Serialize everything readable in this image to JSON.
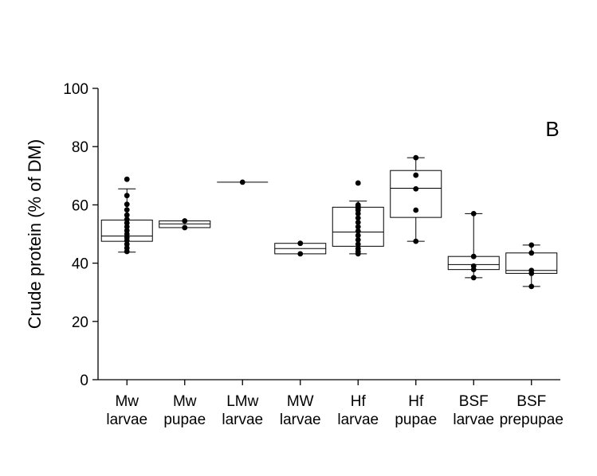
{
  "chart_data": {
    "type": "box",
    "panel_label": "B",
    "ylabel": "Crude protein (% of DM)",
    "ylim": [
      0,
      100
    ],
    "yticks": [
      0,
      20,
      40,
      60,
      80,
      100
    ],
    "grid": false,
    "categories": [
      {
        "line1": "Mw",
        "line2": "larvae"
      },
      {
        "line1": "Mw",
        "line2": "pupae"
      },
      {
        "line1": "LMw",
        "line2": "larvae"
      },
      {
        "line1": "MW",
        "line2": "larvae"
      },
      {
        "line1": "Hf",
        "line2": "larvae"
      },
      {
        "line1": "Hf",
        "line2": "pupae"
      },
      {
        "line1": "BSF",
        "line2": "larvae"
      },
      {
        "line1": "BSF",
        "line2": "prepupae"
      }
    ],
    "boxes": [
      {
        "whisker_low": 43.8,
        "q1": 47.5,
        "median": 49.3,
        "q3": 54.8,
        "whisker_high": 65.5,
        "points": [
          68.8,
          63.2,
          60.2,
          58.3,
          56.5,
          55.0,
          53.8,
          52.5,
          51.2,
          50.0,
          48.8,
          47.8,
          46.5,
          45.2,
          44.0
        ]
      },
      {
        "whisker_low": 52.2,
        "q1": 52.2,
        "median": 53.5,
        "q3": 54.5,
        "whisker_high": 54.5,
        "points": [
          54.5,
          52.2
        ]
      },
      {
        "whisker_low": 67.8,
        "q1": 67.8,
        "median": 67.8,
        "q3": 67.8,
        "whisker_high": 67.8,
        "points": [
          67.8
        ]
      },
      {
        "whisker_low": 43.2,
        "q1": 43.2,
        "median": 45.0,
        "q3": 46.8,
        "whisker_high": 46.8,
        "points": [
          46.8,
          43.2
        ]
      },
      {
        "whisker_low": 43.2,
        "q1": 45.8,
        "median": 50.7,
        "q3": 59.2,
        "whisker_high": 61.3,
        "points": [
          67.5,
          60.0,
          59.6,
          59.2,
          58.8,
          58.2,
          57.0,
          55.5,
          54.0,
          52.5,
          51.0,
          49.5,
          48.0,
          46.5,
          45.0,
          44.0,
          43.2
        ]
      },
      {
        "whisker_low": 47.5,
        "q1": 55.7,
        "median": 65.7,
        "q3": 71.8,
        "whisker_high": 76.2,
        "points": [
          76.2,
          70.2,
          65.5,
          58.2,
          47.5
        ]
      },
      {
        "whisker_low": 35.0,
        "q1": 37.8,
        "median": 39.5,
        "q3": 42.3,
        "whisker_high": 57.0,
        "points": [
          57.0,
          42.3,
          39.0,
          37.8,
          35.0
        ]
      },
      {
        "whisker_low": 32.0,
        "q1": 36.5,
        "median": 37.5,
        "q3": 43.5,
        "whisker_high": 46.2,
        "points": [
          46.2,
          43.5,
          37.5,
          36.5,
          32.0
        ]
      }
    ]
  }
}
